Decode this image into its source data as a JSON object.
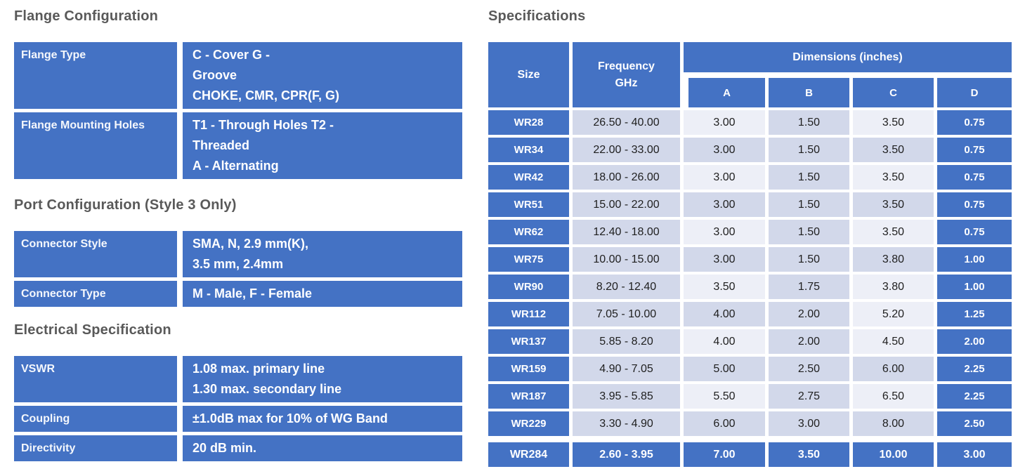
{
  "colors": {
    "blue": "#4472C4",
    "cell_light": "#EDEFF7",
    "cell_mid": "#D2D8EA",
    "heading_gray": "#595959"
  },
  "left": {
    "sections": [
      {
        "heading": "Flange Configuration",
        "rows": [
          {
            "label": "Flange Type",
            "value": "C - Cover G -\nGroove\nCHOKE, CMR, CPR(F, G)"
          },
          {
            "label": "Flange Mounting Holes",
            "value": "T1 - Through Holes T2 -\nThreaded\nA - Alternating"
          }
        ]
      },
      {
        "heading": "Port Configuration (Style 3 Only)",
        "rows": [
          {
            "label": "Connector Style",
            "value": "SMA, N, 2.9 mm(K),\n3.5 mm, 2.4mm"
          },
          {
            "label": "Connector Type",
            "value": "M - Male, F - Female"
          }
        ]
      },
      {
        "heading": "Electrical Specification",
        "rows": [
          {
            "label": "VSWR",
            "value": "1.08 max. primary line\n1.30 max. secondary line"
          },
          {
            "label": "Coupling",
            "value": "±1.0dB max for 10% of WG Band"
          },
          {
            "label": "Directivity",
            "value": "20 dB min."
          }
        ]
      }
    ]
  },
  "spec": {
    "heading": "Specifications",
    "header": {
      "size": "Size",
      "frequency": "Frequency\nGHz",
      "dimensions": "Dimensions  (inches)",
      "a": "A",
      "b": "B",
      "c": "C",
      "d": "D"
    },
    "rows": [
      {
        "size": "WR28",
        "freq": "26.50 - 40.00",
        "a": "3.00",
        "b": "1.50",
        "c": "3.50",
        "d": "0.75"
      },
      {
        "size": "WR34",
        "freq": "22.00 - 33.00",
        "a": "3.00",
        "b": "1.50",
        "c": "3.50",
        "d": "0.75"
      },
      {
        "size": "WR42",
        "freq": "18.00 - 26.00",
        "a": "3.00",
        "b": "1.50",
        "c": "3.50",
        "d": "0.75"
      },
      {
        "size": "WR51",
        "freq": "15.00 - 22.00",
        "a": "3.00",
        "b": "1.50",
        "c": "3.50",
        "d": "0.75"
      },
      {
        "size": "WR62",
        "freq": "12.40 - 18.00",
        "a": "3.00",
        "b": "1.50",
        "c": "3.50",
        "d": "0.75"
      },
      {
        "size": "WR75",
        "freq": "10.00 - 15.00",
        "a": "3.00",
        "b": "1.50",
        "c": "3.80",
        "d": "1.00"
      },
      {
        "size": "WR90",
        "freq": "8.20 - 12.40",
        "a": "3.50",
        "b": "1.75",
        "c": "3.80",
        "d": "1.00"
      },
      {
        "size": "WR112",
        "freq": "7.05 - 10.00",
        "a": "4.00",
        "b": "2.00",
        "c": "5.20",
        "d": "1.25"
      },
      {
        "size": "WR137",
        "freq": "5.85 - 8.20",
        "a": "4.00",
        "b": "2.00",
        "c": "4.50",
        "d": "2.00"
      },
      {
        "size": "WR159",
        "freq": "4.90 - 7.05",
        "a": "5.00",
        "b": "2.50",
        "c": "6.00",
        "d": "2.25"
      },
      {
        "size": "WR187",
        "freq": "3.95 - 5.85",
        "a": "5.50",
        "b": "2.75",
        "c": "6.50",
        "d": "2.25"
      },
      {
        "size": "WR229",
        "freq": "3.30 - 4.90",
        "a": "6.00",
        "b": "3.00",
        "c": "8.00",
        "d": "2.50"
      },
      {
        "size": "WR284",
        "freq": "2.60 - 3.95",
        "a": "7.00",
        "b": "3.50",
        "c": "10.00",
        "d": "3.00"
      }
    ]
  }
}
